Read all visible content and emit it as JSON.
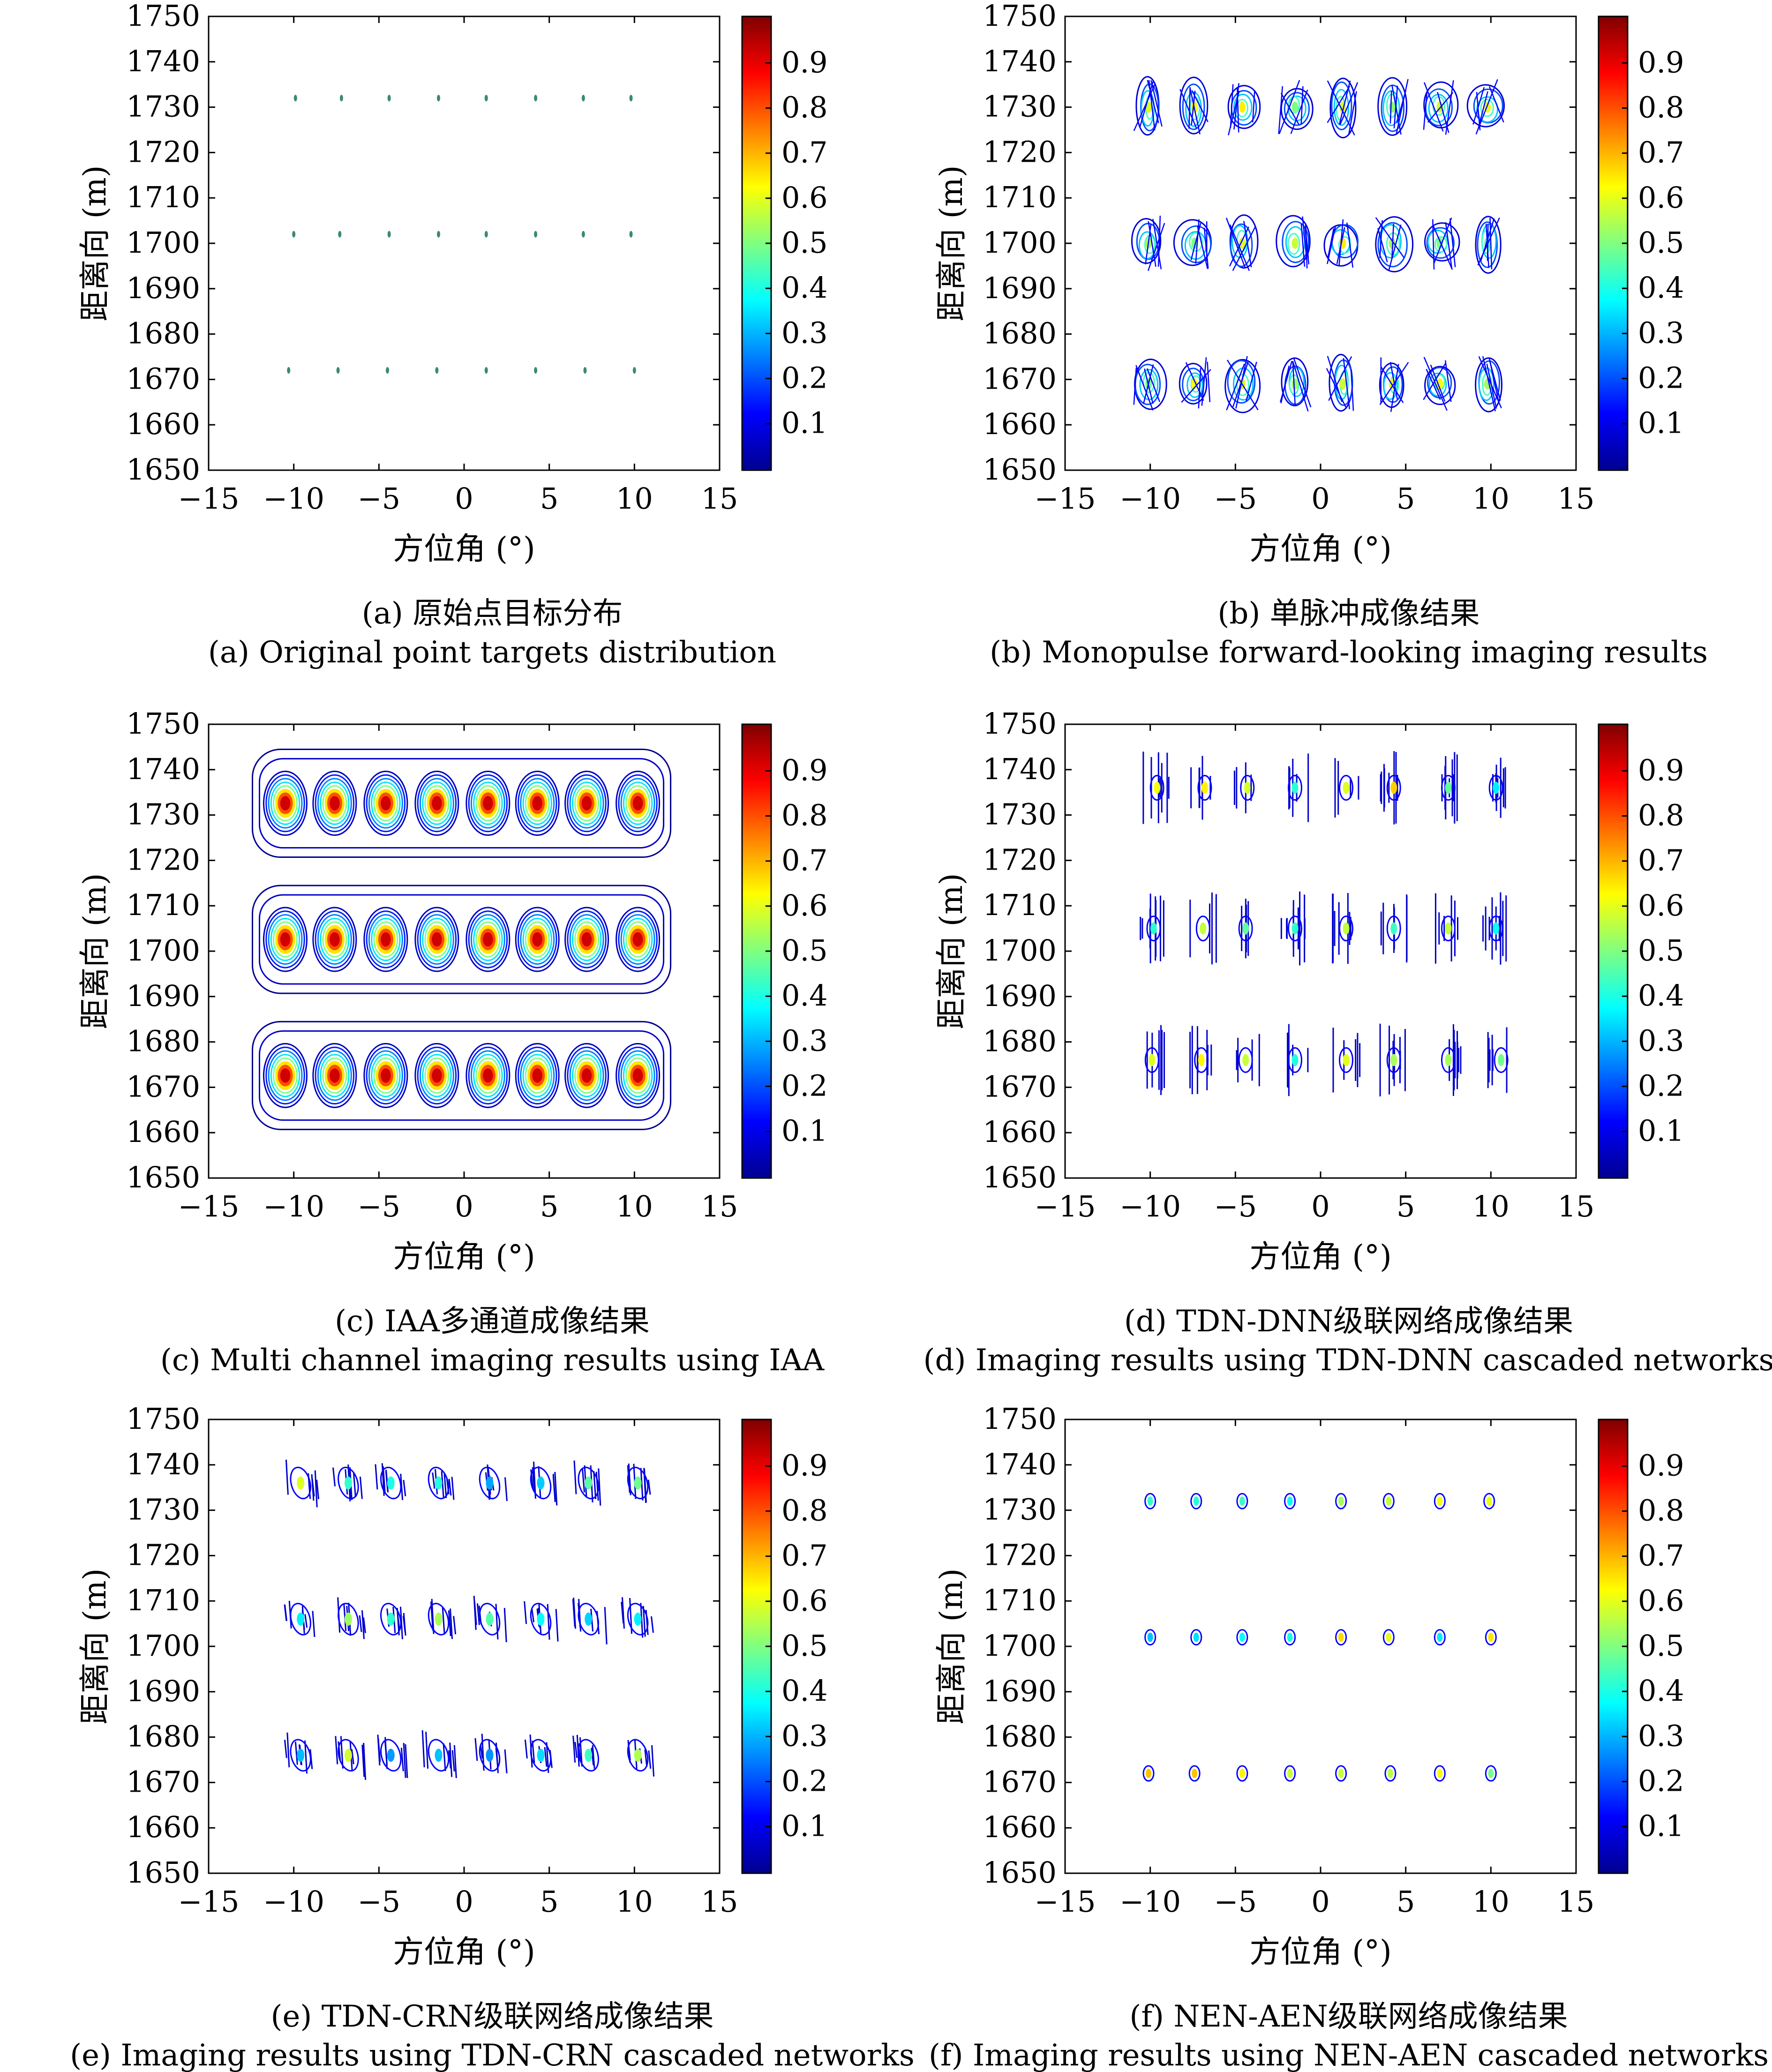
{
  "colorbar": {
    "ticks": [
      "0.1",
      "0.2",
      "0.3",
      "0.4",
      "0.5",
      "0.6",
      "0.7",
      "0.8",
      "0.9"
    ],
    "colormap": [
      "#00008f",
      "#0000ff",
      "#0080ff",
      "#00ffff",
      "#80ff80",
      "#ffff00",
      "#ff8000",
      "#ff0000",
      "#800000"
    ]
  },
  "axes": {
    "xlabel": "方位角 (°)",
    "ylabel": "距离向 (m)",
    "xticks": [
      "−15",
      "−10",
      "−5",
      "0",
      "5",
      "10",
      "15"
    ],
    "yticks": [
      "1650",
      "1660",
      "1670",
      "1680",
      "1690",
      "1700",
      "1710",
      "1720",
      "1730",
      "1740",
      "1750"
    ]
  },
  "chart_data": [
    {
      "type": "heatmap",
      "caption_zh": "(a) 原始点目标分布",
      "caption_en": "(a) Original point targets distribution",
      "xlabel": "方位角 (°)",
      "ylabel": "距离向 (m)",
      "xlim": [
        -15,
        15
      ],
      "ylim": [
        1650,
        1750
      ],
      "clim": [
        0.05,
        0.95
      ],
      "style": "points",
      "rows": [
        {
          "y": 1732,
          "x": [
            -9.9,
            -7.2,
            -4.4,
            -1.5,
            1.3,
            4.2,
            7.0,
            9.8
          ]
        },
        {
          "y": 1702,
          "x": [
            -10.0,
            -7.3,
            -4.4,
            -1.5,
            1.3,
            4.2,
            7.0,
            9.8
          ]
        },
        {
          "y": 1672,
          "x": [
            -10.3,
            -7.4,
            -4.5,
            -1.6,
            1.3,
            4.2,
            7.1,
            10.0
          ]
        }
      ]
    },
    {
      "type": "heatmap",
      "caption_zh": "(b) 单脉冲成像结果",
      "caption_en": "(b) Monopulse forward-looking imaging results",
      "xlabel": "方位角 (°)",
      "ylabel": "距离向 (m)",
      "xlim": [
        -15,
        15
      ],
      "ylim": [
        1650,
        1750
      ],
      "clim": [
        0.05,
        0.95
      ],
      "style": "mono",
      "rows": [
        {
          "y": 1730,
          "x": [
            -10.1,
            -7.4,
            -4.6,
            -1.5,
            1.3,
            4.2,
            7.0,
            9.8
          ]
        },
        {
          "y": 1700,
          "x": [
            -10.1,
            -7.4,
            -4.6,
            -1.5,
            1.3,
            4.2,
            7.0,
            9.8
          ]
        },
        {
          "y": 1669,
          "x": [
            -10.1,
            -7.4,
            -4.6,
            -1.5,
            1.3,
            4.2,
            7.0,
            9.8
          ]
        }
      ]
    },
    {
      "type": "heatmap",
      "caption_zh": "(c) IAA多通道成像结果",
      "caption_en": "(c) Multi channel imaging results using IAA",
      "xlabel": "方位角 (°)",
      "ylabel": "距离向 (m)",
      "xlim": [
        -15,
        15
      ],
      "ylim": [
        1650,
        1750
      ],
      "clim": [
        0.05,
        0.95
      ],
      "style": "iaa",
      "rows": [
        {
          "y": 1733,
          "x": [
            -10.5,
            -7.6,
            -4.6,
            -1.6,
            1.4,
            4.3,
            7.2,
            10.2
          ]
        },
        {
          "y": 1703,
          "x": [
            -10.5,
            -7.6,
            -4.6,
            -1.6,
            1.4,
            4.3,
            7.2,
            10.2
          ]
        },
        {
          "y": 1673,
          "x": [
            -10.5,
            -7.6,
            -4.6,
            -1.6,
            1.4,
            4.3,
            7.2,
            10.2
          ]
        }
      ]
    },
    {
      "type": "heatmap",
      "caption_zh": "(d) TDN-DNN级联网络成像结果",
      "caption_en": "(d) Imaging results using TDN-DNN cascaded networks",
      "xlabel": "方位角 (°)",
      "ylabel": "距离向 (m)",
      "xlim": [
        -15,
        15
      ],
      "ylim": [
        1650,
        1750
      ],
      "clim": [
        0.05,
        0.95
      ],
      "style": "dnn",
      "rows": [
        {
          "y": 1736,
          "x": [
            -9.6,
            -6.8,
            -4.3,
            -1.5,
            1.5,
            4.3,
            7.5,
            10.3
          ]
        },
        {
          "y": 1705,
          "x": [
            -9.8,
            -6.9,
            -4.4,
            -1.5,
            1.5,
            4.3,
            7.5,
            10.3
          ]
        },
        {
          "y": 1676,
          "x": [
            -9.9,
            -7.0,
            -4.4,
            -1.5,
            1.5,
            4.3,
            7.5,
            10.6
          ]
        }
      ]
    },
    {
      "type": "heatmap",
      "caption_zh": "(e) TDN-CRN级联网络成像结果",
      "caption_en": "(e) Imaging results using TDN-CRN cascaded networks",
      "xlabel": "方位角 (°)",
      "ylabel": "距离向 (m)",
      "xlim": [
        -15,
        15
      ],
      "ylim": [
        1650,
        1750
      ],
      "clim": [
        0.05,
        0.95
      ],
      "style": "crn",
      "rows": [
        {
          "y": 1736,
          "x": [
            -9.6,
            -6.8,
            -4.3,
            -1.5,
            1.5,
            4.5,
            7.3,
            10.2
          ]
        },
        {
          "y": 1706,
          "x": [
            -9.6,
            -6.8,
            -4.3,
            -1.5,
            1.5,
            4.5,
            7.3,
            10.2
          ]
        },
        {
          "y": 1676,
          "x": [
            -9.6,
            -6.8,
            -4.3,
            -1.5,
            1.5,
            4.5,
            7.3,
            10.2
          ]
        }
      ]
    },
    {
      "type": "heatmap",
      "caption_zh": "(f) NEN-AEN级联网络成像结果",
      "caption_en": "(f) Imaging results using NEN-AEN cascaded networks",
      "xlabel": "方位角 (°)",
      "ylabel": "距离向 (m)",
      "xlim": [
        -15,
        15
      ],
      "ylim": [
        1650,
        1750
      ],
      "clim": [
        0.05,
        0.95
      ],
      "style": "aen",
      "rows": [
        {
          "y": 1732,
          "x": [
            -10.0,
            -7.3,
            -4.6,
            -1.8,
            1.2,
            4.0,
            7.0,
            9.9
          ]
        },
        {
          "y": 1702,
          "x": [
            -10.0,
            -7.3,
            -4.6,
            -1.8,
            1.2,
            4.0,
            7.0,
            10.0
          ]
        },
        {
          "y": 1672,
          "x": [
            -10.1,
            -7.4,
            -4.6,
            -1.8,
            1.2,
            4.1,
            7.0,
            10.0
          ]
        }
      ]
    }
  ]
}
